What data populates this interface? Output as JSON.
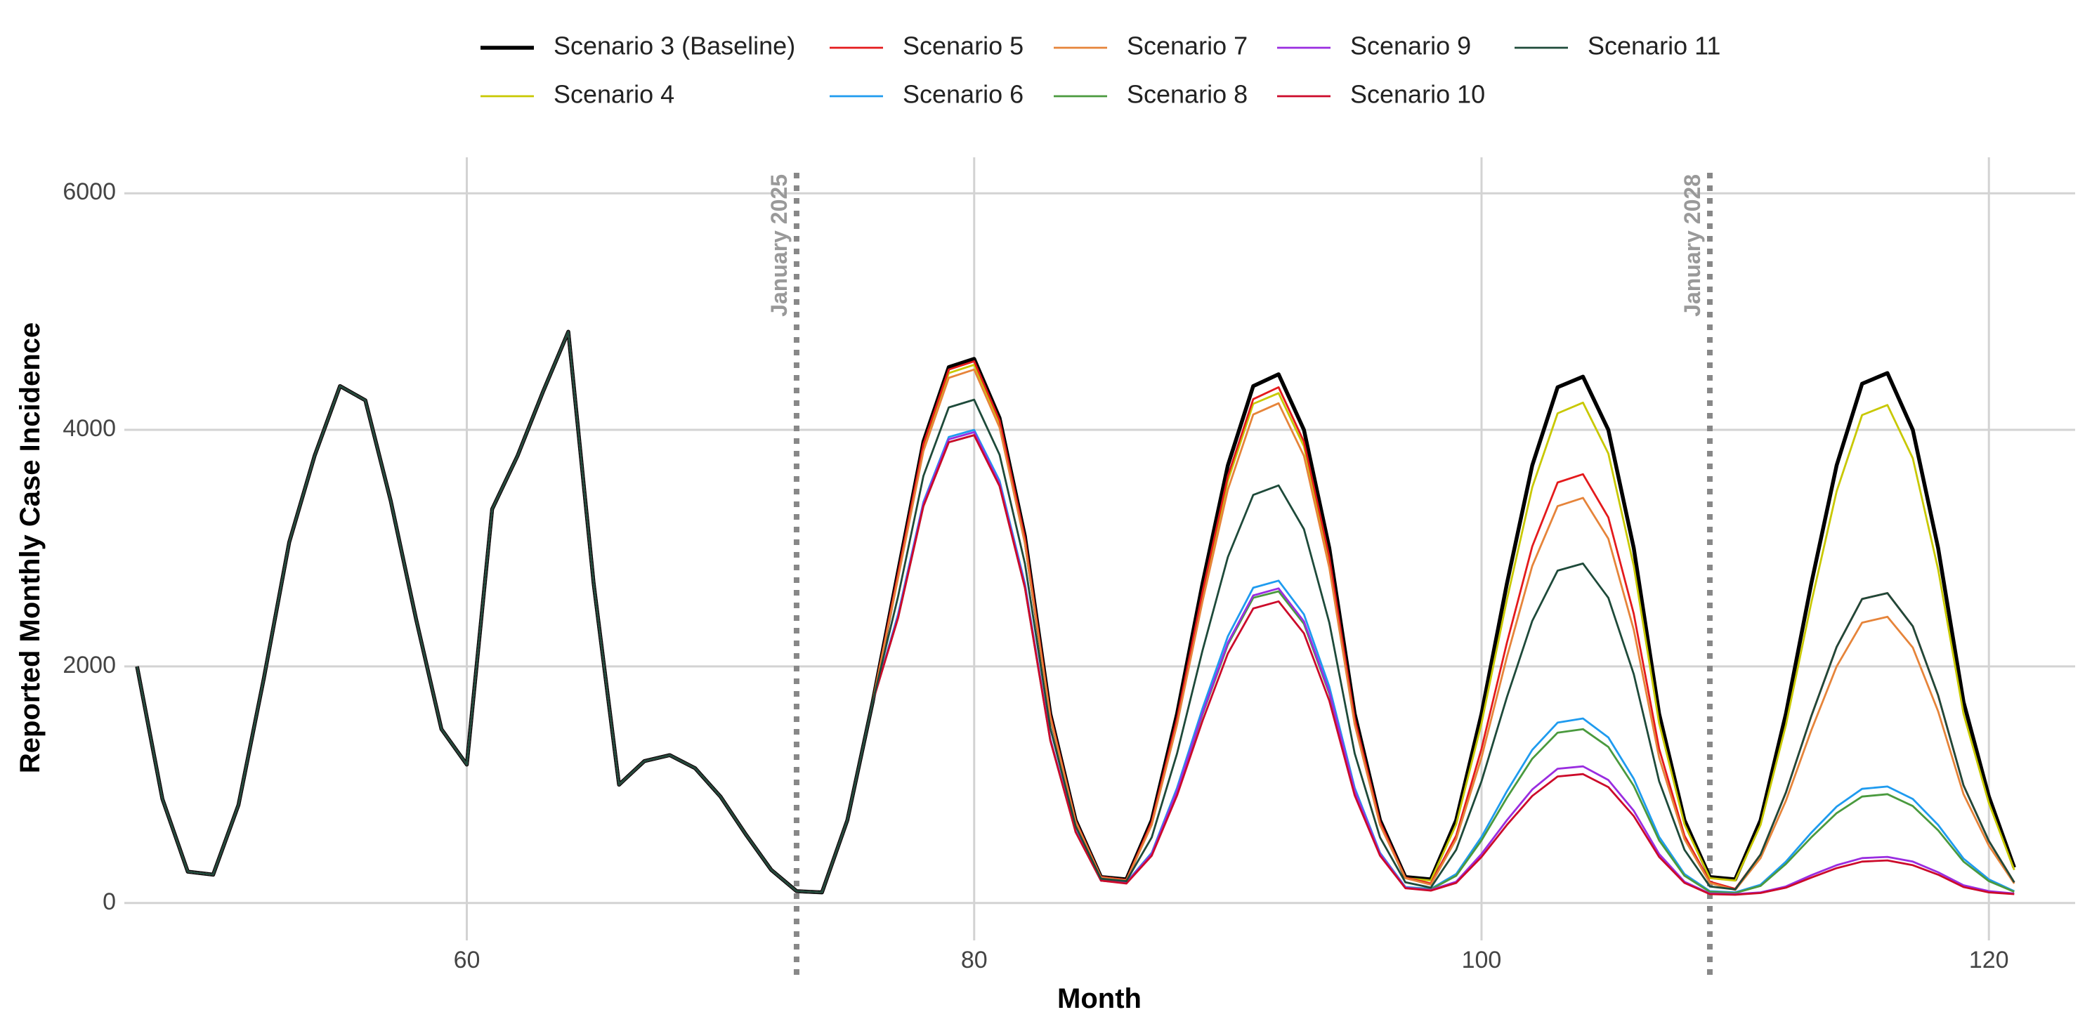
{
  "chart_data": {
    "type": "line",
    "xlabel": "Month",
    "ylabel": "Reported Monthly Case Incidence",
    "x": [
      47,
      48,
      49,
      50,
      51,
      52,
      53,
      54,
      55,
      56,
      57,
      58,
      59,
      60,
      61,
      62,
      63,
      64,
      65,
      66,
      67,
      68,
      69,
      70,
      71,
      72,
      73,
      74,
      75,
      76,
      77,
      78,
      79,
      80,
      81,
      82,
      83,
      84,
      85,
      86,
      87,
      88,
      89,
      90,
      91,
      92,
      93,
      94,
      95,
      96,
      97,
      98,
      99,
      100,
      101,
      102,
      103,
      104,
      105,
      106,
      107,
      108,
      109,
      110,
      111,
      112,
      113,
      114,
      115,
      116,
      117,
      118,
      119,
      120,
      121
    ],
    "xlim": [
      46.5,
      123.4
    ],
    "xticks": [
      60,
      80,
      100,
      120
    ],
    "ylim": [
      -316,
      6304
    ],
    "yticks": [
      0,
      2000,
      4000,
      6000
    ],
    "grid": true,
    "legend": "top",
    "annotations": [
      {
        "x": 73,
        "label": "January 2025"
      },
      {
        "x": 109,
        "label": "January 2028"
      }
    ],
    "series": [
      {
        "name": "Scenario 3 (Baseline)",
        "color": "#000000",
        "values": [
          2000,
          880,
          265,
          240,
          830,
          1900,
          3050,
          3780,
          4370,
          4250,
          3400,
          2400,
          1470,
          1170,
          3330,
          3780,
          4320,
          4830,
          2700,
          1000,
          1200,
          1250,
          1140,
          900,
          580,
          280,
          100,
          90,
          700,
          1700,
          2800,
          3900,
          4530,
          4600,
          4100,
          3100,
          1600,
          700,
          220,
          200,
          700,
          1600,
          2700,
          3700,
          4370,
          4470,
          4000,
          3000,
          1600,
          700,
          220,
          200,
          700,
          1600,
          2700,
          3700,
          4360,
          4450,
          4000,
          3000,
          1600,
          700,
          220,
          200,
          700,
          1600,
          2700,
          3700,
          4390,
          4480,
          4000,
          3000,
          1700,
          900,
          300
        ]
      },
      {
        "name": "Scenario 4",
        "color": "#c8c800",
        "values": [
          2000,
          880,
          265,
          240,
          830,
          1900,
          3050,
          3780,
          4370,
          4250,
          3400,
          2400,
          1470,
          1170,
          3330,
          3780,
          4320,
          4830,
          2700,
          1000,
          1200,
          1250,
          1140,
          900,
          580,
          280,
          100,
          90,
          700,
          1700,
          2770,
          3860,
          4480,
          4550,
          4060,
          3070,
          1580,
          690,
          220,
          195,
          675,
          1545,
          2605,
          3570,
          4220,
          4310,
          3860,
          2895,
          1545,
          675,
          210,
          190,
          665,
          1520,
          2565,
          3515,
          4140,
          4230,
          3800,
          2850,
          1520,
          665,
          210,
          190,
          660,
          1505,
          2540,
          3480,
          4125,
          4210,
          3760,
          2820,
          1600,
          845,
          280
        ]
      },
      {
        "name": "Scenario 5",
        "color": "#e41a1c",
        "values": [
          2000,
          880,
          265,
          240,
          830,
          1900,
          3050,
          3780,
          4370,
          4250,
          3400,
          2400,
          1470,
          1170,
          3330,
          3780,
          4320,
          4830,
          2700,
          1000,
          1200,
          1250,
          1140,
          900,
          580,
          280,
          100,
          90,
          700,
          1700,
          2785,
          3880,
          4510,
          4580,
          4080,
          3085,
          1590,
          695,
          220,
          195,
          685,
          1560,
          2630,
          3610,
          4260,
          4360,
          3900,
          2925,
          1560,
          685,
          215,
          165,
          570,
          1305,
          2200,
          3015,
          3555,
          3625,
          3260,
          2445,
          1305,
          570,
          180,
          120,
          410,
          935,
          1580,
          2165,
          2570,
          2620,
          2340,
          1755,
          995,
          525,
          175
        ]
      },
      {
        "name": "Scenario 6",
        "color": "#1f9bef",
        "values": [
          2000,
          880,
          265,
          240,
          830,
          1900,
          3050,
          3780,
          4370,
          4250,
          3400,
          2400,
          1470,
          1170,
          3330,
          3780,
          4320,
          4830,
          2700,
          1000,
          1200,
          1250,
          1140,
          900,
          580,
          280,
          100,
          90,
          700,
          1700,
          2440,
          3390,
          3940,
          4000,
          3570,
          2700,
          1390,
          610,
          190,
          175,
          425,
          975,
          1645,
          2255,
          2665,
          2725,
          2440,
          1830,
          975,
          425,
          135,
          120,
          245,
          560,
          945,
          1295,
          1525,
          1560,
          1400,
          1050,
          560,
          245,
          100,
          90,
          155,
          350,
          595,
          815,
          965,
          985,
          880,
          660,
          375,
          200,
          100
        ]
      },
      {
        "name": "Scenario 7",
        "color": "#e6843a",
        "values": [
          2000,
          880,
          265,
          240,
          830,
          1900,
          3050,
          3780,
          4370,
          4250,
          3400,
          2400,
          1470,
          1170,
          3330,
          3780,
          4320,
          4830,
          2700,
          1000,
          1200,
          1250,
          1140,
          900,
          580,
          280,
          100,
          90,
          700,
          1700,
          2745,
          3820,
          4440,
          4510,
          4020,
          3040,
          1570,
          685,
          215,
          190,
          660,
          1510,
          2550,
          3495,
          4130,
          4225,
          3780,
          2835,
          1510,
          660,
          210,
          155,
          540,
          1230,
          2080,
          2850,
          3355,
          3425,
          3080,
          2310,
          1230,
          540,
          170,
          110,
          380,
          865,
          1460,
          2000,
          2370,
          2420,
          2160,
          1620,
          920,
          485,
          165
        ]
      },
      {
        "name": "Scenario 8",
        "color": "#4a9a3e",
        "values": [
          2000,
          880,
          265,
          240,
          830,
          1900,
          3050,
          3780,
          4370,
          4250,
          3400,
          2400,
          1470,
          1170,
          3330,
          3780,
          4320,
          4830,
          2700,
          1000,
          1200,
          1250,
          1140,
          900,
          580,
          280,
          100,
          90,
          700,
          1700,
          2410,
          3355,
          3895,
          3955,
          3525,
          2665,
          1375,
          600,
          190,
          170,
          415,
          945,
          1595,
          2185,
          2580,
          2635,
          2360,
          1770,
          945,
          415,
          130,
          115,
          230,
          530,
          890,
          1220,
          1440,
          1470,
          1320,
          990,
          530,
          230,
          95,
          85,
          145,
          330,
          555,
          760,
          900,
          920,
          820,
          615,
          350,
          185,
          95
        ]
      },
      {
        "name": "Scenario 9",
        "color": "#9a2de0",
        "values": [
          2000,
          880,
          265,
          240,
          830,
          1900,
          3050,
          3780,
          4370,
          4250,
          3400,
          2400,
          1470,
          1170,
          3330,
          3780,
          4320,
          4830,
          2700,
          1000,
          1200,
          1250,
          1140,
          900,
          580,
          280,
          100,
          90,
          700,
          1700,
          2420,
          3375,
          3920,
          3980,
          3545,
          2680,
          1385,
          605,
          190,
          170,
          415,
          950,
          1605,
          2200,
          2600,
          2660,
          2380,
          1785,
          950,
          415,
          130,
          110,
          180,
          415,
          700,
          960,
          1135,
          1155,
          1040,
          780,
          415,
          180,
          80,
          75,
          90,
          140,
          235,
          320,
          380,
          390,
          350,
          260,
          150,
          100,
          80
        ]
      },
      {
        "name": "Scenario 10",
        "color": "#cc0a2a",
        "values": [
          2000,
          880,
          265,
          240,
          830,
          1900,
          3050,
          3780,
          4370,
          4250,
          3400,
          2400,
          1470,
          1170,
          3330,
          3780,
          4320,
          4830,
          2700,
          1000,
          1200,
          1250,
          1140,
          900,
          580,
          280,
          100,
          90,
          700,
          1700,
          2410,
          3355,
          3895,
          3955,
          3525,
          2665,
          1375,
          600,
          190,
          165,
          400,
          910,
          1540,
          2110,
          2490,
          2550,
          2280,
          1710,
          910,
          400,
          125,
          105,
          170,
          390,
          660,
          905,
          1070,
          1090,
          980,
          735,
          390,
          170,
          75,
          70,
          85,
          130,
          215,
          295,
          350,
          360,
          320,
          240,
          135,
          90,
          75
        ]
      },
      {
        "name": "Scenario 11",
        "color": "#1e4a3a",
        "values": [
          2000,
          880,
          265,
          240,
          830,
          1900,
          3050,
          3780,
          4370,
          4250,
          3400,
          2400,
          1470,
          1170,
          3330,
          3780,
          4320,
          4830,
          2700,
          1000,
          1200,
          1250,
          1140,
          900,
          580,
          280,
          100,
          90,
          700,
          1700,
          2590,
          3610,
          4190,
          4255,
          3790,
          2870,
          1480,
          650,
          205,
          185,
          555,
          1265,
          2135,
          2925,
          3450,
          3530,
          3160,
          2370,
          1265,
          555,
          175,
          130,
          450,
          1030,
          1740,
          2385,
          2810,
          2870,
          2580,
          1935,
          1030,
          450,
          140,
          115,
          410,
          935,
          1580,
          2165,
          2570,
          2620,
          2340,
          1755,
          995,
          525,
          175
        ]
      }
    ]
  }
}
